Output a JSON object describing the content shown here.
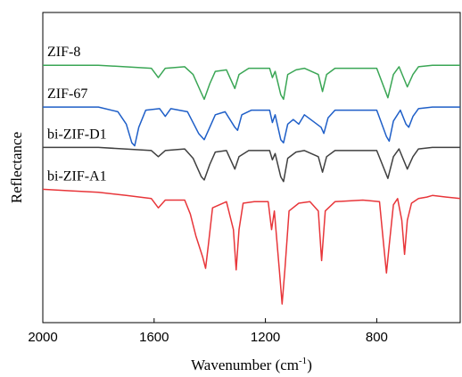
{
  "chart_data": {
    "type": "line",
    "xlabel": "Wavenumber (cm",
    "xlabel_sup": "-1",
    "xlabel_close": ")",
    "ylabel": "Reflectance",
    "xlim": [
      2000,
      500
    ],
    "x_reversed": true,
    "xticks": [
      2000,
      1600,
      1200,
      800
    ],
    "xtick_labels": [
      "2000",
      "1600",
      "1200",
      "800"
    ],
    "y_axis_ticks_shown": false,
    "series": [
      {
        "name": "ZIF-8",
        "color": "#3aa655",
        "baseline": 0.83,
        "points": [
          [
            2000,
            0.83
          ],
          [
            1800,
            0.83
          ],
          [
            1610,
            0.82
          ],
          [
            1585,
            0.79
          ],
          [
            1560,
            0.82
          ],
          [
            1490,
            0.825
          ],
          [
            1460,
            0.8
          ],
          [
            1430,
            0.74
          ],
          [
            1420,
            0.72
          ],
          [
            1400,
            0.77
          ],
          [
            1380,
            0.81
          ],
          [
            1340,
            0.815
          ],
          [
            1310,
            0.755
          ],
          [
            1295,
            0.8
          ],
          [
            1260,
            0.82
          ],
          [
            1185,
            0.82
          ],
          [
            1175,
            0.79
          ],
          [
            1165,
            0.81
          ],
          [
            1145,
            0.735
          ],
          [
            1135,
            0.72
          ],
          [
            1120,
            0.8
          ],
          [
            1090,
            0.815
          ],
          [
            1060,
            0.82
          ],
          [
            1010,
            0.8
          ],
          [
            995,
            0.745
          ],
          [
            980,
            0.8
          ],
          [
            950,
            0.82
          ],
          [
            800,
            0.82
          ],
          [
            760,
            0.725
          ],
          [
            740,
            0.8
          ],
          [
            720,
            0.825
          ],
          [
            690,
            0.76
          ],
          [
            670,
            0.8
          ],
          [
            650,
            0.825
          ],
          [
            600,
            0.83
          ],
          [
            500,
            0.83
          ]
        ]
      },
      {
        "name": "ZIF-67",
        "color": "#1f5fc8",
        "baseline": 0.695,
        "points": [
          [
            2000,
            0.695
          ],
          [
            1800,
            0.695
          ],
          [
            1730,
            0.68
          ],
          [
            1700,
            0.64
          ],
          [
            1680,
            0.58
          ],
          [
            1670,
            0.57
          ],
          [
            1655,
            0.63
          ],
          [
            1630,
            0.685
          ],
          [
            1580,
            0.69
          ],
          [
            1560,
            0.665
          ],
          [
            1540,
            0.69
          ],
          [
            1480,
            0.68
          ],
          [
            1440,
            0.61
          ],
          [
            1420,
            0.59
          ],
          [
            1400,
            0.63
          ],
          [
            1380,
            0.67
          ],
          [
            1345,
            0.68
          ],
          [
            1310,
            0.63
          ],
          [
            1300,
            0.62
          ],
          [
            1285,
            0.67
          ],
          [
            1250,
            0.685
          ],
          [
            1185,
            0.685
          ],
          [
            1175,
            0.645
          ],
          [
            1165,
            0.67
          ],
          [
            1145,
            0.59
          ],
          [
            1135,
            0.58
          ],
          [
            1120,
            0.64
          ],
          [
            1100,
            0.655
          ],
          [
            1080,
            0.64
          ],
          [
            1060,
            0.67
          ],
          [
            1000,
            0.63
          ],
          [
            990,
            0.61
          ],
          [
            975,
            0.66
          ],
          [
            950,
            0.685
          ],
          [
            800,
            0.685
          ],
          [
            765,
            0.6
          ],
          [
            755,
            0.585
          ],
          [
            740,
            0.65
          ],
          [
            715,
            0.685
          ],
          [
            695,
            0.64
          ],
          [
            685,
            0.63
          ],
          [
            670,
            0.665
          ],
          [
            650,
            0.69
          ],
          [
            600,
            0.695
          ],
          [
            500,
            0.695
          ]
        ]
      },
      {
        "name": "bi-ZIF-D1",
        "color": "#404040",
        "baseline": 0.565,
        "points": [
          [
            2000,
            0.565
          ],
          [
            1800,
            0.565
          ],
          [
            1610,
            0.555
          ],
          [
            1585,
            0.535
          ],
          [
            1560,
            0.555
          ],
          [
            1490,
            0.56
          ],
          [
            1460,
            0.53
          ],
          [
            1430,
            0.47
          ],
          [
            1420,
            0.46
          ],
          [
            1400,
            0.51
          ],
          [
            1380,
            0.55
          ],
          [
            1340,
            0.555
          ],
          [
            1310,
            0.495
          ],
          [
            1295,
            0.535
          ],
          [
            1260,
            0.555
          ],
          [
            1185,
            0.555
          ],
          [
            1175,
            0.525
          ],
          [
            1165,
            0.545
          ],
          [
            1145,
            0.47
          ],
          [
            1135,
            0.455
          ],
          [
            1120,
            0.53
          ],
          [
            1090,
            0.55
          ],
          [
            1060,
            0.555
          ],
          [
            1010,
            0.535
          ],
          [
            995,
            0.485
          ],
          [
            980,
            0.535
          ],
          [
            950,
            0.555
          ],
          [
            800,
            0.555
          ],
          [
            760,
            0.465
          ],
          [
            740,
            0.535
          ],
          [
            720,
            0.56
          ],
          [
            690,
            0.495
          ],
          [
            670,
            0.535
          ],
          [
            650,
            0.56
          ],
          [
            600,
            0.565
          ],
          [
            500,
            0.565
          ]
        ]
      },
      {
        "name": "bi-ZIF-A1",
        "color": "#e8363a",
        "baseline": 0.43,
        "points": [
          [
            2000,
            0.43
          ],
          [
            1900,
            0.425
          ],
          [
            1800,
            0.42
          ],
          [
            1700,
            0.41
          ],
          [
            1610,
            0.4
          ],
          [
            1585,
            0.37
          ],
          [
            1560,
            0.395
          ],
          [
            1490,
            0.395
          ],
          [
            1470,
            0.35
          ],
          [
            1450,
            0.28
          ],
          [
            1425,
            0.21
          ],
          [
            1415,
            0.175
          ],
          [
            1405,
            0.25
          ],
          [
            1390,
            0.37
          ],
          [
            1340,
            0.39
          ],
          [
            1315,
            0.3
          ],
          [
            1305,
            0.17
          ],
          [
            1295,
            0.3
          ],
          [
            1280,
            0.385
          ],
          [
            1240,
            0.39
          ],
          [
            1190,
            0.39
          ],
          [
            1178,
            0.3
          ],
          [
            1168,
            0.36
          ],
          [
            1150,
            0.17
          ],
          [
            1140,
            0.06
          ],
          [
            1130,
            0.17
          ],
          [
            1115,
            0.36
          ],
          [
            1080,
            0.385
          ],
          [
            1040,
            0.39
          ],
          [
            1010,
            0.36
          ],
          [
            998,
            0.2
          ],
          [
            985,
            0.36
          ],
          [
            950,
            0.39
          ],
          [
            850,
            0.395
          ],
          [
            790,
            0.39
          ],
          [
            775,
            0.25
          ],
          [
            765,
            0.16
          ],
          [
            755,
            0.25
          ],
          [
            740,
            0.38
          ],
          [
            725,
            0.4
          ],
          [
            710,
            0.33
          ],
          [
            700,
            0.22
          ],
          [
            690,
            0.33
          ],
          [
            675,
            0.385
          ],
          [
            650,
            0.4
          ],
          [
            620,
            0.405
          ],
          [
            600,
            0.41
          ],
          [
            550,
            0.405
          ],
          [
            500,
            0.4
          ]
        ]
      }
    ]
  }
}
